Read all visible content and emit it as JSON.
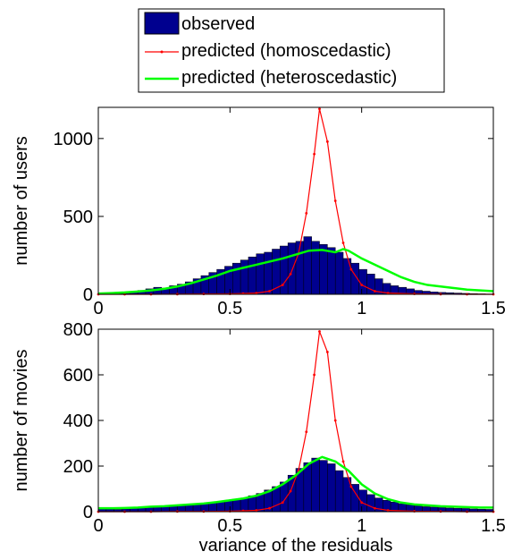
{
  "legend": {
    "entries": [
      {
        "label": "observed",
        "kind": "bar",
        "color": "#00008f"
      },
      {
        "label": "predicted (homoscedastic)",
        "kind": "line",
        "color": "#ff0000"
      },
      {
        "label": "predicted (heteroscedastic)",
        "kind": "line",
        "color": "#00ff00"
      }
    ]
  },
  "chart_data": [
    {
      "type": "bar",
      "ylabel": "number of users",
      "xlabel": "",
      "xlim": [
        0,
        1.5
      ],
      "ylim": [
        0,
        1200
      ],
      "xticks": [
        "0",
        "0.5",
        "1",
        "1.5"
      ],
      "yticks": [
        "0",
        "500",
        "1000"
      ],
      "bin_width": 0.03,
      "x": [
        0.015,
        0.045,
        0.075,
        0.105,
        0.135,
        0.165,
        0.195,
        0.225,
        0.255,
        0.285,
        0.315,
        0.345,
        0.375,
        0.405,
        0.435,
        0.465,
        0.495,
        0.525,
        0.555,
        0.585,
        0.615,
        0.645,
        0.675,
        0.705,
        0.735,
        0.765,
        0.795,
        0.825,
        0.855,
        0.885,
        0.915,
        0.945,
        0.975,
        1.005,
        1.035,
        1.065,
        1.095,
        1.125,
        1.155,
        1.185,
        1.215,
        1.245,
        1.275,
        1.305,
        1.335,
        1.365,
        1.395,
        1.425,
        1.455,
        1.485
      ],
      "series": [
        {
          "name": "observed",
          "kind": "bar",
          "color": "#00008f",
          "values": [
            3,
            5,
            8,
            12,
            18,
            25,
            35,
            45,
            40,
            55,
            65,
            80,
            100,
            120,
            140,
            160,
            180,
            200,
            220,
            240,
            260,
            270,
            290,
            310,
            330,
            340,
            370,
            340,
            320,
            300,
            270,
            230,
            200,
            160,
            130,
            100,
            70,
            55,
            45,
            35,
            25,
            20,
            15,
            12,
            10,
            8,
            6,
            4,
            3,
            2
          ]
        },
        {
          "name": "predicted (homoscedastic)",
          "kind": "line",
          "color": "#ff0000",
          "x": [
            0,
            0.1,
            0.2,
            0.3,
            0.4,
            0.5,
            0.55,
            0.6,
            0.65,
            0.7,
            0.73,
            0.76,
            0.79,
            0.82,
            0.84,
            0.87,
            0.9,
            0.93,
            0.96,
            1.0,
            1.05,
            1.1,
            1.2,
            1.3,
            1.4,
            1.5
          ],
          "values": [
            0,
            0,
            0,
            1,
            2,
            3,
            5,
            8,
            20,
            60,
            130,
            260,
            520,
            900,
            1190,
            980,
            600,
            330,
            160,
            60,
            20,
            8,
            3,
            1,
            0,
            0
          ]
        },
        {
          "name": "predicted (heteroscedastic)",
          "kind": "line",
          "color": "#00ff00",
          "x": [
            0,
            0.05,
            0.1,
            0.15,
            0.2,
            0.25,
            0.3,
            0.35,
            0.4,
            0.45,
            0.5,
            0.55,
            0.6,
            0.65,
            0.7,
            0.75,
            0.8,
            0.85,
            0.9,
            0.93,
            0.95,
            1.0,
            1.05,
            1.1,
            1.15,
            1.2,
            1.25,
            1.3,
            1.35,
            1.4,
            1.45,
            1.5
          ],
          "values": [
            5,
            8,
            12,
            18,
            25,
            35,
            50,
            70,
            95,
            120,
            150,
            170,
            190,
            210,
            230,
            255,
            280,
            285,
            270,
            290,
            280,
            230,
            190,
            150,
            110,
            80,
            60,
            50,
            40,
            30,
            25,
            20
          ]
        }
      ]
    },
    {
      "type": "bar",
      "ylabel": "number of movies",
      "xlabel": "variance of the residuals",
      "xlim": [
        0,
        1.5
      ],
      "ylim": [
        0,
        800
      ],
      "xticks": [
        "0",
        "0.5",
        "1",
        "1.5"
      ],
      "yticks": [
        "0",
        "200",
        "400",
        "600",
        "800"
      ],
      "bin_width": 0.03,
      "x": [
        0.015,
        0.045,
        0.075,
        0.105,
        0.135,
        0.165,
        0.195,
        0.225,
        0.255,
        0.285,
        0.315,
        0.345,
        0.375,
        0.405,
        0.435,
        0.465,
        0.495,
        0.525,
        0.555,
        0.585,
        0.615,
        0.645,
        0.675,
        0.705,
        0.735,
        0.765,
        0.795,
        0.825,
        0.855,
        0.885,
        0.915,
        0.945,
        0.975,
        1.005,
        1.035,
        1.065,
        1.095,
        1.125,
        1.155,
        1.185,
        1.215,
        1.245,
        1.275,
        1.305,
        1.335,
        1.365,
        1.395,
        1.425,
        1.455,
        1.485
      ],
      "series": [
        {
          "name": "observed",
          "kind": "bar",
          "color": "#00008f",
          "values": [
            15,
            12,
            10,
            12,
            15,
            18,
            20,
            22,
            25,
            28,
            30,
            32,
            35,
            38,
            40,
            45,
            50,
            55,
            60,
            70,
            80,
            95,
            110,
            130,
            160,
            190,
            215,
            235,
            225,
            210,
            180,
            150,
            120,
            95,
            75,
            60,
            50,
            42,
            35,
            30,
            26,
            22,
            20,
            18,
            16,
            15,
            14,
            12,
            11,
            10
          ]
        },
        {
          "name": "predicted (homoscedastic)",
          "kind": "line",
          "color": "#ff0000",
          "x": [
            0,
            0.1,
            0.2,
            0.3,
            0.4,
            0.5,
            0.55,
            0.6,
            0.65,
            0.7,
            0.73,
            0.76,
            0.79,
            0.82,
            0.84,
            0.87,
            0.9,
            0.93,
            0.96,
            1.0,
            1.05,
            1.1,
            1.2,
            1.3,
            1.4,
            1.5
          ],
          "values": [
            0,
            0,
            0,
            1,
            1,
            2,
            4,
            6,
            15,
            40,
            90,
            180,
            350,
            600,
            790,
            700,
            400,
            220,
            110,
            40,
            15,
            6,
            2,
            1,
            0,
            0
          ]
        },
        {
          "name": "predicted (heteroscedastic)",
          "kind": "line",
          "color": "#00ff00",
          "x": [
            0,
            0.05,
            0.1,
            0.15,
            0.2,
            0.25,
            0.3,
            0.35,
            0.4,
            0.45,
            0.5,
            0.55,
            0.6,
            0.65,
            0.7,
            0.75,
            0.8,
            0.85,
            0.9,
            0.95,
            1.0,
            1.05,
            1.1,
            1.15,
            1.2,
            1.25,
            1.3,
            1.35,
            1.4,
            1.45,
            1.5
          ],
          "values": [
            15,
            15,
            16,
            18,
            22,
            24,
            28,
            32,
            36,
            42,
            50,
            58,
            70,
            90,
            120,
            160,
            210,
            240,
            220,
            180,
            120,
            80,
            55,
            40,
            32,
            28,
            24,
            22,
            20,
            18,
            18
          ]
        }
      ]
    }
  ]
}
